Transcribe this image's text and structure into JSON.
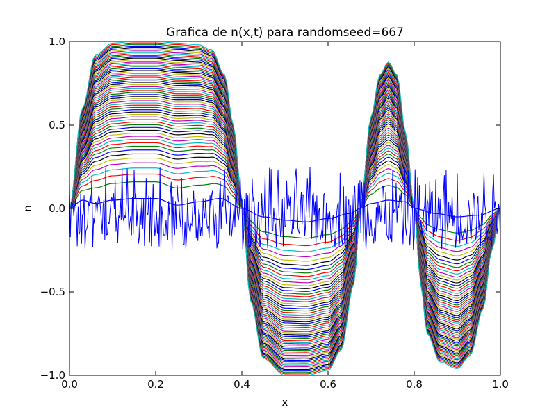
{
  "chart_data": {
    "type": "line",
    "title": "Grafica de n(x,t) para randomseed=667",
    "xlabel": "x",
    "ylabel": "n",
    "xlim": [
      0.0,
      1.0
    ],
    "ylim": [
      -1.0,
      1.0
    ],
    "x_ticks": [
      "0.0",
      "0.2",
      "0.4",
      "0.6",
      "0.8",
      "1.0"
    ],
    "y_ticks": [
      "−1.0",
      "−0.5",
      "0.0",
      "0.5",
      "1.0"
    ],
    "grid": false,
    "legend": "none",
    "color_cycle": [
      "#0000ff",
      "#008000",
      "#ff0000",
      "#00bfbf",
      "#bf00bf",
      "#bfbf00",
      "#000000"
    ],
    "initial_condition": {
      "description_color": "#0000ff",
      "value_range": [
        -0.25,
        0.25
      ],
      "points": 500
    },
    "curve_count": 60,
    "final_profile": {
      "x": [
        0.0,
        0.03,
        0.06,
        0.1,
        0.15,
        0.2,
        0.25,
        0.3,
        0.33,
        0.36,
        0.38,
        0.4,
        0.42,
        0.45,
        0.5,
        0.55,
        0.6,
        0.63,
        0.66,
        0.675,
        0.7,
        0.72,
        0.74,
        0.76,
        0.78,
        0.8,
        0.815,
        0.83,
        0.86,
        0.9,
        0.93,
        0.96,
        0.98,
        1.0
      ],
      "y": [
        0.0,
        0.6,
        0.92,
        0.99,
        1.0,
        1.0,
        0.99,
        0.98,
        0.95,
        0.8,
        0.5,
        0.05,
        -0.55,
        -0.9,
        -1.0,
        -1.0,
        -0.97,
        -0.85,
        -0.45,
        0.0,
        0.55,
        0.8,
        0.88,
        0.8,
        0.45,
        0.0,
        -0.45,
        -0.75,
        -0.92,
        -0.96,
        -0.88,
        -0.6,
        -0.25,
        0.0
      ]
    },
    "early_profile": {
      "x": [
        0.0,
        0.03,
        0.06,
        0.1,
        0.15,
        0.2,
        0.25,
        0.3,
        0.35,
        0.4,
        0.45,
        0.5,
        0.55,
        0.6,
        0.65,
        0.675,
        0.7,
        0.74,
        0.78,
        0.8,
        0.85,
        0.9,
        0.95,
        1.0
      ],
      "y": [
        0.0,
        0.05,
        0.03,
        0.05,
        0.06,
        0.06,
        0.02,
        0.04,
        0.06,
        0.0,
        -0.05,
        -0.07,
        -0.08,
        -0.06,
        -0.03,
        0.0,
        0.03,
        0.05,
        0.04,
        0.0,
        -0.03,
        -0.05,
        -0.04,
        0.0
      ]
    }
  }
}
